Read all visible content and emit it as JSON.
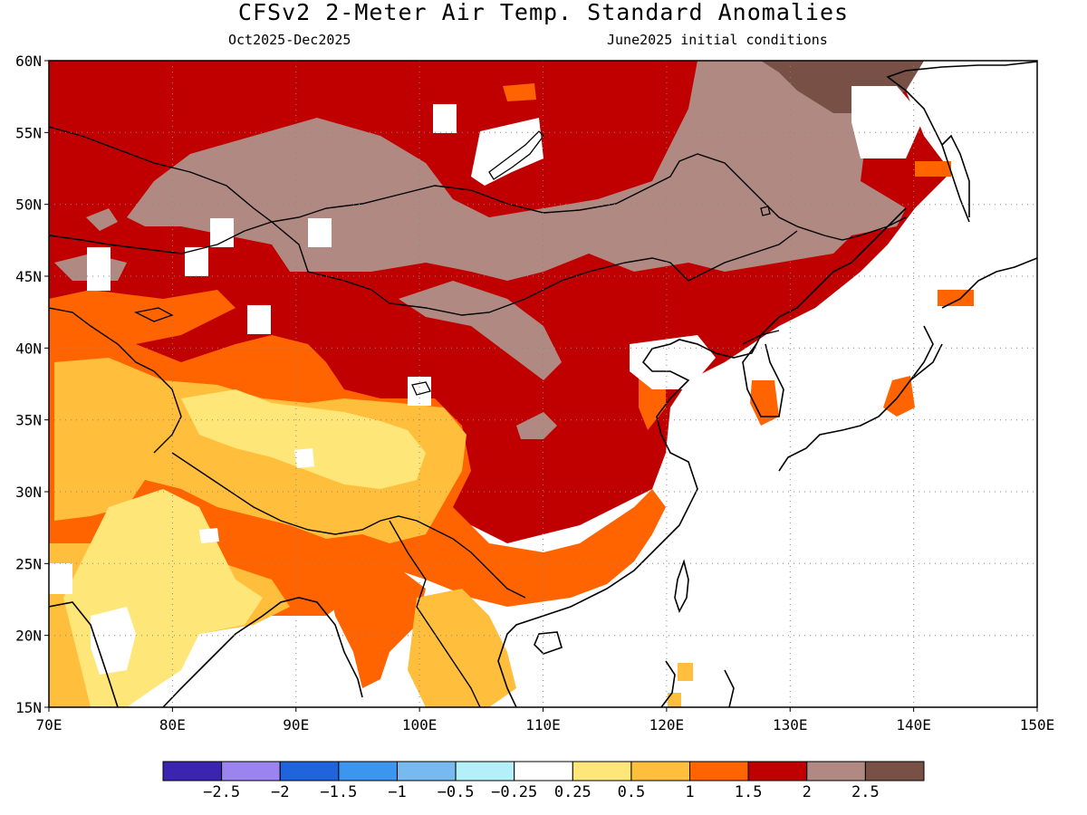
{
  "title": "CFSv2 2-Meter Air Temp. Standard Anomalies",
  "period": "Oct2025-Dec2025",
  "initial_conditions": "June2025 initial conditions",
  "colors": {
    "below_minus_2_5": "#3a24b0",
    "minus_2_5_to_minus_2": "#9c84f0",
    "minus_2_to_minus_1_5": "#1f64dc",
    "minus_1_5_to_minus_1": "#3c96f0",
    "minus_1_to_minus_0_5": "#78b9f0",
    "minus_0_5_to_minus_0_25": "#b4f0fa",
    "neutral": "#ffffff",
    "p0_25_to_0_5": "#ffe678",
    "p0_5_to_1": "#ffbe3c",
    "p1_to_1_5": "#ff6400",
    "p1_5_to_2": "#c00000",
    "p2_to_2_5": "#b08a82",
    "above_2_5": "#785046"
  },
  "chart_data": {
    "type": "heatmap",
    "x_ticks": [
      "70E",
      "80E",
      "90E",
      "100E",
      "110E",
      "120E",
      "130E",
      "140E",
      "150E"
    ],
    "y_ticks": [
      "15N",
      "20N",
      "25N",
      "30N",
      "35N",
      "40N",
      "45N",
      "50N",
      "55N",
      "60N"
    ],
    "xlim": [
      70,
      150
    ],
    "ylim": [
      15,
      60
    ],
    "grid": true,
    "colorbar_labels": [
      "-2.5",
      "-2",
      "-1.5",
      "-1",
      "-0.5",
      "-0.25",
      "0.25",
      "0.5",
      "1",
      "1.5",
      "2",
      "2.5"
    ],
    "colorbar_bins": 13
  }
}
